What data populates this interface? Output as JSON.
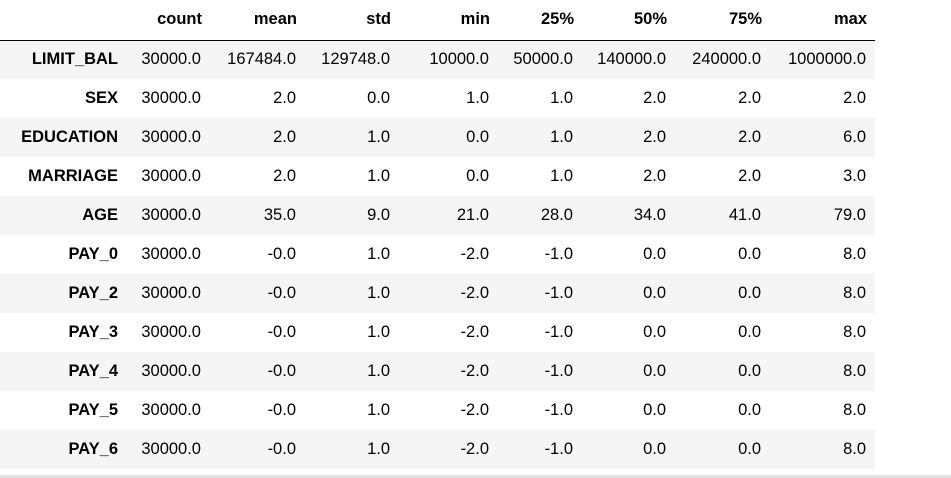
{
  "table": {
    "columns": [
      "",
      "count",
      "mean",
      "std",
      "min",
      "25%",
      "50%",
      "75%",
      "max"
    ],
    "rows": [
      {
        "index": "LIMIT_BAL",
        "values": [
          "30000.0",
          "167484.0",
          "129748.0",
          "10000.0",
          "50000.0",
          "140000.0",
          "240000.0",
          "1000000.0"
        ]
      },
      {
        "index": "SEX",
        "values": [
          "30000.0",
          "2.0",
          "0.0",
          "1.0",
          "1.0",
          "2.0",
          "2.0",
          "2.0"
        ]
      },
      {
        "index": "EDUCATION",
        "values": [
          "30000.0",
          "2.0",
          "1.0",
          "0.0",
          "1.0",
          "2.0",
          "2.0",
          "6.0"
        ]
      },
      {
        "index": "MARRIAGE",
        "values": [
          "30000.0",
          "2.0",
          "1.0",
          "0.0",
          "1.0",
          "2.0",
          "2.0",
          "3.0"
        ]
      },
      {
        "index": "AGE",
        "values": [
          "30000.0",
          "35.0",
          "9.0",
          "21.0",
          "28.0",
          "34.0",
          "41.0",
          "79.0"
        ]
      },
      {
        "index": "PAY_0",
        "values": [
          "30000.0",
          "-0.0",
          "1.0",
          "-2.0",
          "-1.0",
          "0.0",
          "0.0",
          "8.0"
        ]
      },
      {
        "index": "PAY_2",
        "values": [
          "30000.0",
          "-0.0",
          "1.0",
          "-2.0",
          "-1.0",
          "0.0",
          "0.0",
          "8.0"
        ]
      },
      {
        "index": "PAY_3",
        "values": [
          "30000.0",
          "-0.0",
          "1.0",
          "-2.0",
          "-1.0",
          "0.0",
          "0.0",
          "8.0"
        ]
      },
      {
        "index": "PAY_4",
        "values": [
          "30000.0",
          "-0.0",
          "1.0",
          "-2.0",
          "-1.0",
          "0.0",
          "0.0",
          "8.0"
        ]
      },
      {
        "index": "PAY_5",
        "values": [
          "30000.0",
          "-0.0",
          "1.0",
          "-2.0",
          "-1.0",
          "0.0",
          "0.0",
          "8.0"
        ]
      },
      {
        "index": "PAY_6",
        "values": [
          "30000.0",
          "-0.0",
          "1.0",
          "-2.0",
          "-1.0",
          "0.0",
          "0.0",
          "8.0"
        ]
      }
    ]
  },
  "colors": {
    "stripe": "#f5f5f5",
    "header_rule": "#000000",
    "text": "#000000"
  }
}
